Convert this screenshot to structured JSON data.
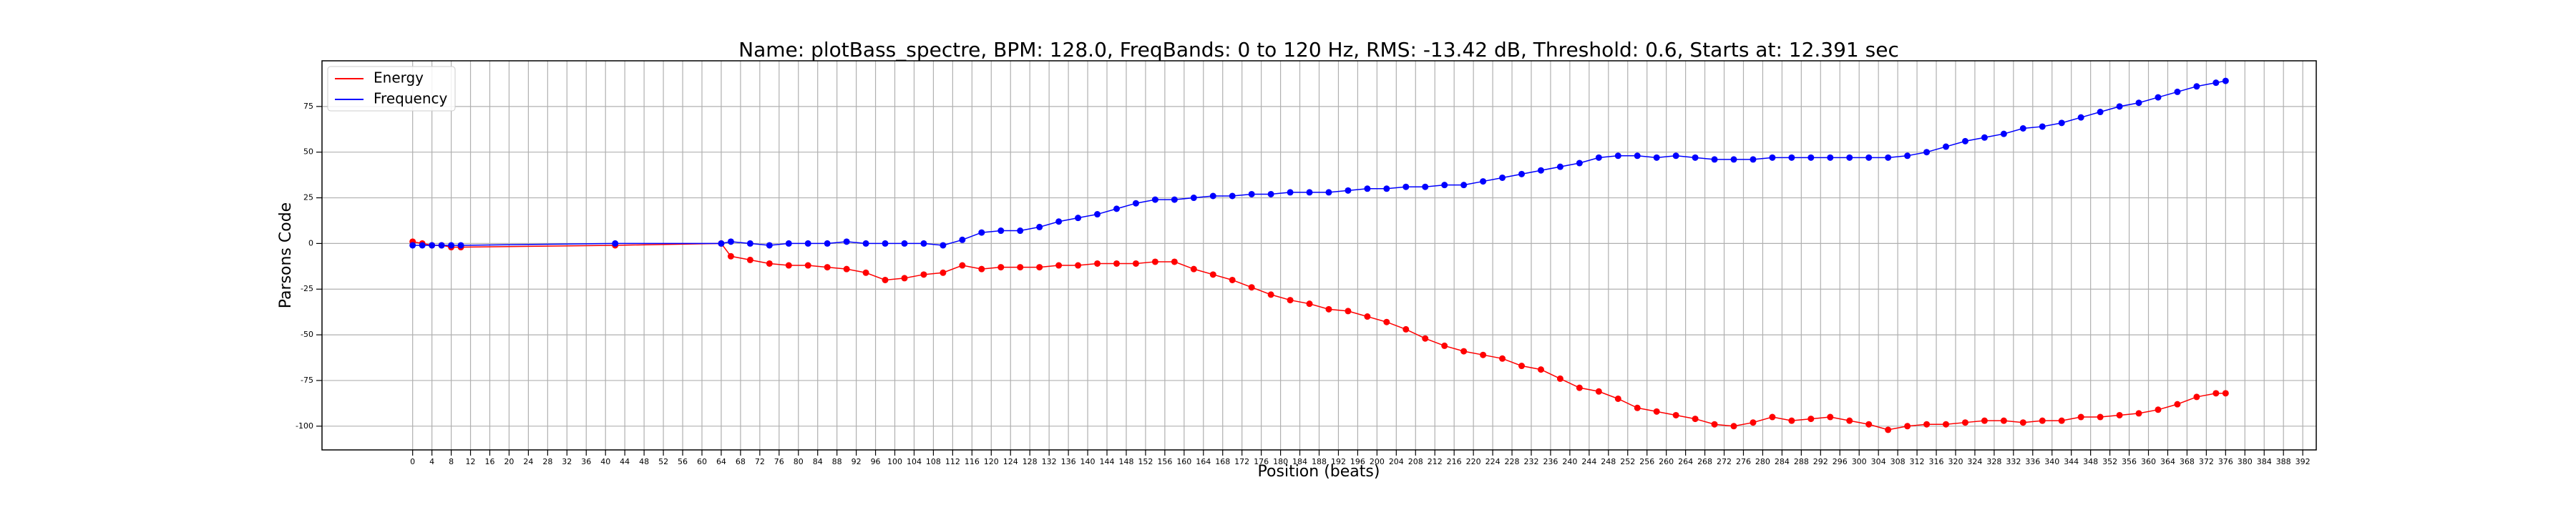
{
  "chart_data": {
    "type": "line",
    "title": "Name: plotBass_spectre, BPM: 128.0, FreqBands: 0 to 120 Hz, RMS: -13.42 dB, Threshold: 0.6, Starts at: 12.391 sec",
    "xlabel": "Position (beats)",
    "ylabel": "Parsons Code",
    "x": [
      0,
      2,
      4,
      6,
      8,
      10,
      42,
      64,
      66,
      70,
      74,
      78,
      82,
      86,
      90,
      94,
      98,
      102,
      106,
      110,
      114,
      118,
      122,
      126,
      130,
      134,
      138,
      142,
      146,
      150,
      154,
      158,
      162,
      166,
      170,
      174,
      178,
      182,
      186,
      190,
      194,
      198,
      202,
      206,
      210,
      214,
      218,
      222,
      226,
      230,
      234,
      238,
      242,
      246,
      250,
      254,
      258,
      262,
      266,
      270,
      274,
      278,
      282,
      286,
      290,
      294,
      298,
      302,
      306,
      310,
      314,
      318,
      322,
      326,
      330,
      334,
      338,
      342,
      346,
      350,
      354,
      358,
      362,
      366,
      370,
      374,
      376
    ],
    "series": [
      {
        "name": "Energy",
        "color": "#ff0000",
        "values": [
          1,
          0,
          -1,
          -1,
          -2,
          -2,
          -1,
          0,
          -7,
          -9,
          -11,
          -12,
          -12,
          -13,
          -14,
          -16,
          -20,
          -19,
          -17,
          -16,
          -12,
          -14,
          -13,
          -13,
          -13,
          -12,
          -12,
          -11,
          -11,
          -11,
          -10,
          -10,
          -14,
          -17,
          -20,
          -24,
          -28,
          -31,
          -33,
          -36,
          -37,
          -40,
          -43,
          -47,
          -52,
          -56,
          -59,
          -61,
          -63,
          -67,
          -69,
          -74,
          -79,
          -81,
          -85,
          -90,
          -92,
          -94,
          -96,
          -99,
          -100,
          -98,
          -95,
          -97,
          -96,
          -95,
          -97,
          -99,
          -102,
          -100,
          -99,
          -99,
          -98,
          -97,
          -97,
          -98,
          -97,
          -97,
          -95,
          -95,
          -94,
          -93,
          -91,
          -88,
          -84,
          -82,
          -82
        ]
      },
      {
        "name": "Frequency",
        "color": "#0000ff",
        "values": [
          -1,
          -1,
          -1,
          -1,
          -1,
          -1,
          0,
          0,
          1,
          0,
          -1,
          0,
          0,
          0,
          1,
          0,
          0,
          0,
          0,
          -1,
          2,
          6,
          7,
          7,
          9,
          12,
          14,
          16,
          19,
          22,
          24,
          24,
          25,
          26,
          26,
          27,
          27,
          28,
          28,
          28,
          29,
          30,
          30,
          31,
          31,
          32,
          32,
          34,
          36,
          38,
          40,
          42,
          44,
          47,
          48,
          48,
          47,
          48,
          47,
          46,
          46,
          46,
          47,
          47,
          47,
          47,
          47,
          47,
          47,
          48,
          50,
          53,
          56,
          58,
          60,
          63,
          64,
          66,
          69,
          72,
          75,
          77,
          80,
          83,
          86,
          88,
          89
        ]
      }
    ],
    "xlim": [
      -18.8,
      394.8
    ],
    "ylim": [
      -113,
      100
    ],
    "xticks": [
      0,
      4,
      8,
      12,
      16,
      20,
      24,
      28,
      32,
      36,
      40,
      44,
      48,
      52,
      56,
      60,
      64,
      68,
      72,
      76,
      80,
      84,
      88,
      92,
      96,
      100,
      104,
      108,
      112,
      116,
      120,
      124,
      128,
      132,
      136,
      140,
      144,
      148,
      152,
      156,
      160,
      164,
      168,
      172,
      176,
      180,
      184,
      188,
      192,
      196,
      200,
      204,
      208,
      212,
      216,
      220,
      224,
      228,
      232,
      236,
      240,
      244,
      248,
      252,
      256,
      260,
      264,
      268,
      272,
      276,
      280,
      284,
      288,
      292,
      296,
      300,
      304,
      308,
      312,
      316,
      320,
      324,
      328,
      332,
      336,
      340,
      344,
      348,
      352,
      356,
      360,
      364,
      368,
      372,
      376,
      380,
      384,
      388,
      392
    ],
    "yticks": [
      -100,
      -75,
      -50,
      -25,
      0,
      25,
      50,
      75
    ],
    "grid": true,
    "legend": "upper left"
  }
}
